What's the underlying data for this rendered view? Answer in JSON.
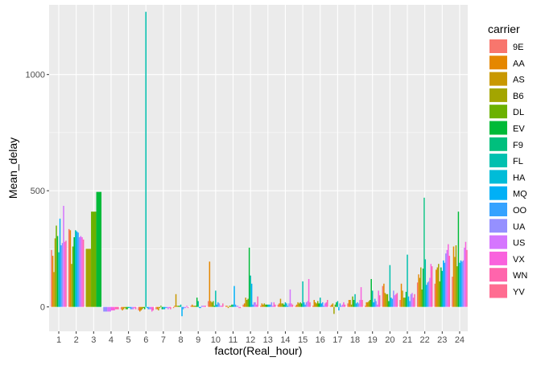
{
  "chart_data": {
    "type": "bar",
    "xlabel": "factor(Real_hour)",
    "ylabel": "Mean_delay",
    "ylim": [
      -105,
      1300
    ],
    "yticks": [
      0,
      500,
      1000
    ],
    "grid": true,
    "legend_position": "right",
    "legend_title": "carrier",
    "categories": [
      "1",
      "2",
      "3",
      "4",
      "5",
      "6",
      "7",
      "8",
      "9",
      "10",
      "11",
      "12",
      "13",
      "14",
      "15",
      "16",
      "17",
      "18",
      "19",
      "20",
      "21",
      "22",
      "23",
      "24"
    ],
    "series": [
      {
        "name": "9E",
        "color": "#F8766D",
        "values": [
          245,
          335,
          null,
          null,
          -10,
          -15,
          -10,
          -5,
          5,
          25,
          5,
          10,
          5,
          10,
          5,
          5,
          5,
          15,
          5,
          90,
          30,
          105,
          100,
          130
        ]
      },
      {
        "name": "AA",
        "color": "#E58700",
        "values": [
          220,
          330,
          null,
          null,
          -15,
          -20,
          -10,
          5,
          10,
          195,
          5,
          15,
          15,
          15,
          10,
          30,
          10,
          30,
          20,
          100,
          100,
          140,
          160,
          260
        ]
      },
      {
        "name": "AS",
        "color": "#C99800",
        "values": [
          150,
          null,
          null,
          null,
          -10,
          -15,
          -15,
          55,
          5,
          25,
          -5,
          40,
          10,
          35,
          20,
          20,
          15,
          30,
          20,
          60,
          70,
          125,
          170,
          215
        ]
      },
      {
        "name": "B6",
        "color": "#A3A500",
        "values": [
          295,
          185,
          250,
          null,
          -5,
          -10,
          -5,
          5,
          5,
          20,
          5,
          30,
          15,
          15,
          15,
          15,
          -30,
          10,
          25,
          55,
          40,
          170,
          185,
          265
        ]
      },
      {
        "name": "DL",
        "color": "#6BB100",
        "values": [
          350,
          260,
          410,
          null,
          -10,
          -5,
          5,
          5,
          5,
          25,
          5,
          35,
          10,
          15,
          20,
          25,
          10,
          45,
          30,
          55,
          40,
          75,
          110,
          175
        ]
      },
      {
        "name": "EV",
        "color": "#00BA38",
        "values": [
          305,
          300,
          495,
          null,
          -10,
          -10,
          -10,
          5,
          40,
          5,
          10,
          255,
          10,
          10,
          15,
          15,
          20,
          30,
          120,
          25,
          65,
          165,
          170,
          410
        ]
      },
      {
        "name": "F9",
        "color": "#00BF7D",
        "values": [
          null,
          null,
          null,
          null,
          null,
          null,
          null,
          null,
          null,
          null,
          null,
          null,
          null,
          null,
          null,
          null,
          null,
          null,
          null,
          null,
          null,
          470,
          null,
          null
        ]
      },
      {
        "name": "FL",
        "color": "#00C0AF",
        "values": [
          235,
          330,
          null,
          null,
          -5,
          1270,
          -10,
          10,
          25,
          70,
          10,
          135,
          10,
          20,
          110,
          40,
          25,
          55,
          70,
          180,
          225,
          205,
          155,
          190
        ]
      },
      {
        "name": "HA",
        "color": "#00BCD8",
        "values": [
          null,
          null,
          null,
          null,
          null,
          null,
          null,
          null,
          null,
          null,
          null,
          null,
          null,
          null,
          null,
          null,
          null,
          null,
          null,
          null,
          null,
          null,
          null,
          null
        ]
      },
      {
        "name": "MQ",
        "color": "#00B0F6",
        "values": [
          380,
          325,
          null,
          null,
          -5,
          -5,
          -10,
          -40,
          -5,
          10,
          90,
          100,
          10,
          15,
          20,
          15,
          -15,
          15,
          20,
          40,
          45,
          95,
          200,
          200
        ]
      },
      {
        "name": "OO",
        "color": "#35A2FF",
        "values": [
          265,
          320,
          null,
          null,
          -10,
          -10,
          -5,
          -10,
          -5,
          20,
          10,
          10,
          10,
          5,
          10,
          20,
          15,
          20,
          35,
          35,
          25,
          105,
          190,
          195
        ]
      },
      {
        "name": "UA",
        "color": "#9590FF",
        "values": [
          275,
          300,
          null,
          -20,
          -10,
          -10,
          -5,
          -5,
          5,
          15,
          5,
          20,
          20,
          15,
          20,
          5,
          5,
          15,
          25,
          70,
          55,
          110,
          230,
          200
        ]
      },
      {
        "name": "US",
        "color": "#D575FE",
        "values": [
          435,
          305,
          null,
          -20,
          -10,
          -10,
          -10,
          -5,
          5,
          5,
          5,
          20,
          5,
          75,
          25,
          15,
          10,
          30,
          10,
          50,
          60,
          125,
          245,
          255
        ]
      },
      {
        "name": "VX",
        "color": "#F962DD",
        "values": [
          280,
          300,
          null,
          -15,
          -5,
          -20,
          -5,
          5,
          5,
          5,
          -5,
          10,
          20,
          15,
          120,
          20,
          20,
          85,
          70,
          55,
          40,
          185,
          270,
          280
        ]
      },
      {
        "name": "WN",
        "color": "#FF65AC",
        "values": [
          285,
          290,
          null,
          -10,
          -10,
          -15,
          -10,
          -5,
          5,
          15,
          -5,
          45,
          10,
          10,
          20,
          30,
          10,
          30,
          50,
          60,
          55,
          175,
          220,
          245
        ]
      },
      {
        "name": "YV",
        "color": "#FF6C91",
        "values": [
          null,
          null,
          null,
          null,
          null,
          null,
          null,
          null,
          null,
          null,
          null,
          null,
          null,
          null,
          null,
          null,
          null,
          null,
          null,
          null,
          null,
          null,
          null,
          null
        ]
      }
    ]
  }
}
